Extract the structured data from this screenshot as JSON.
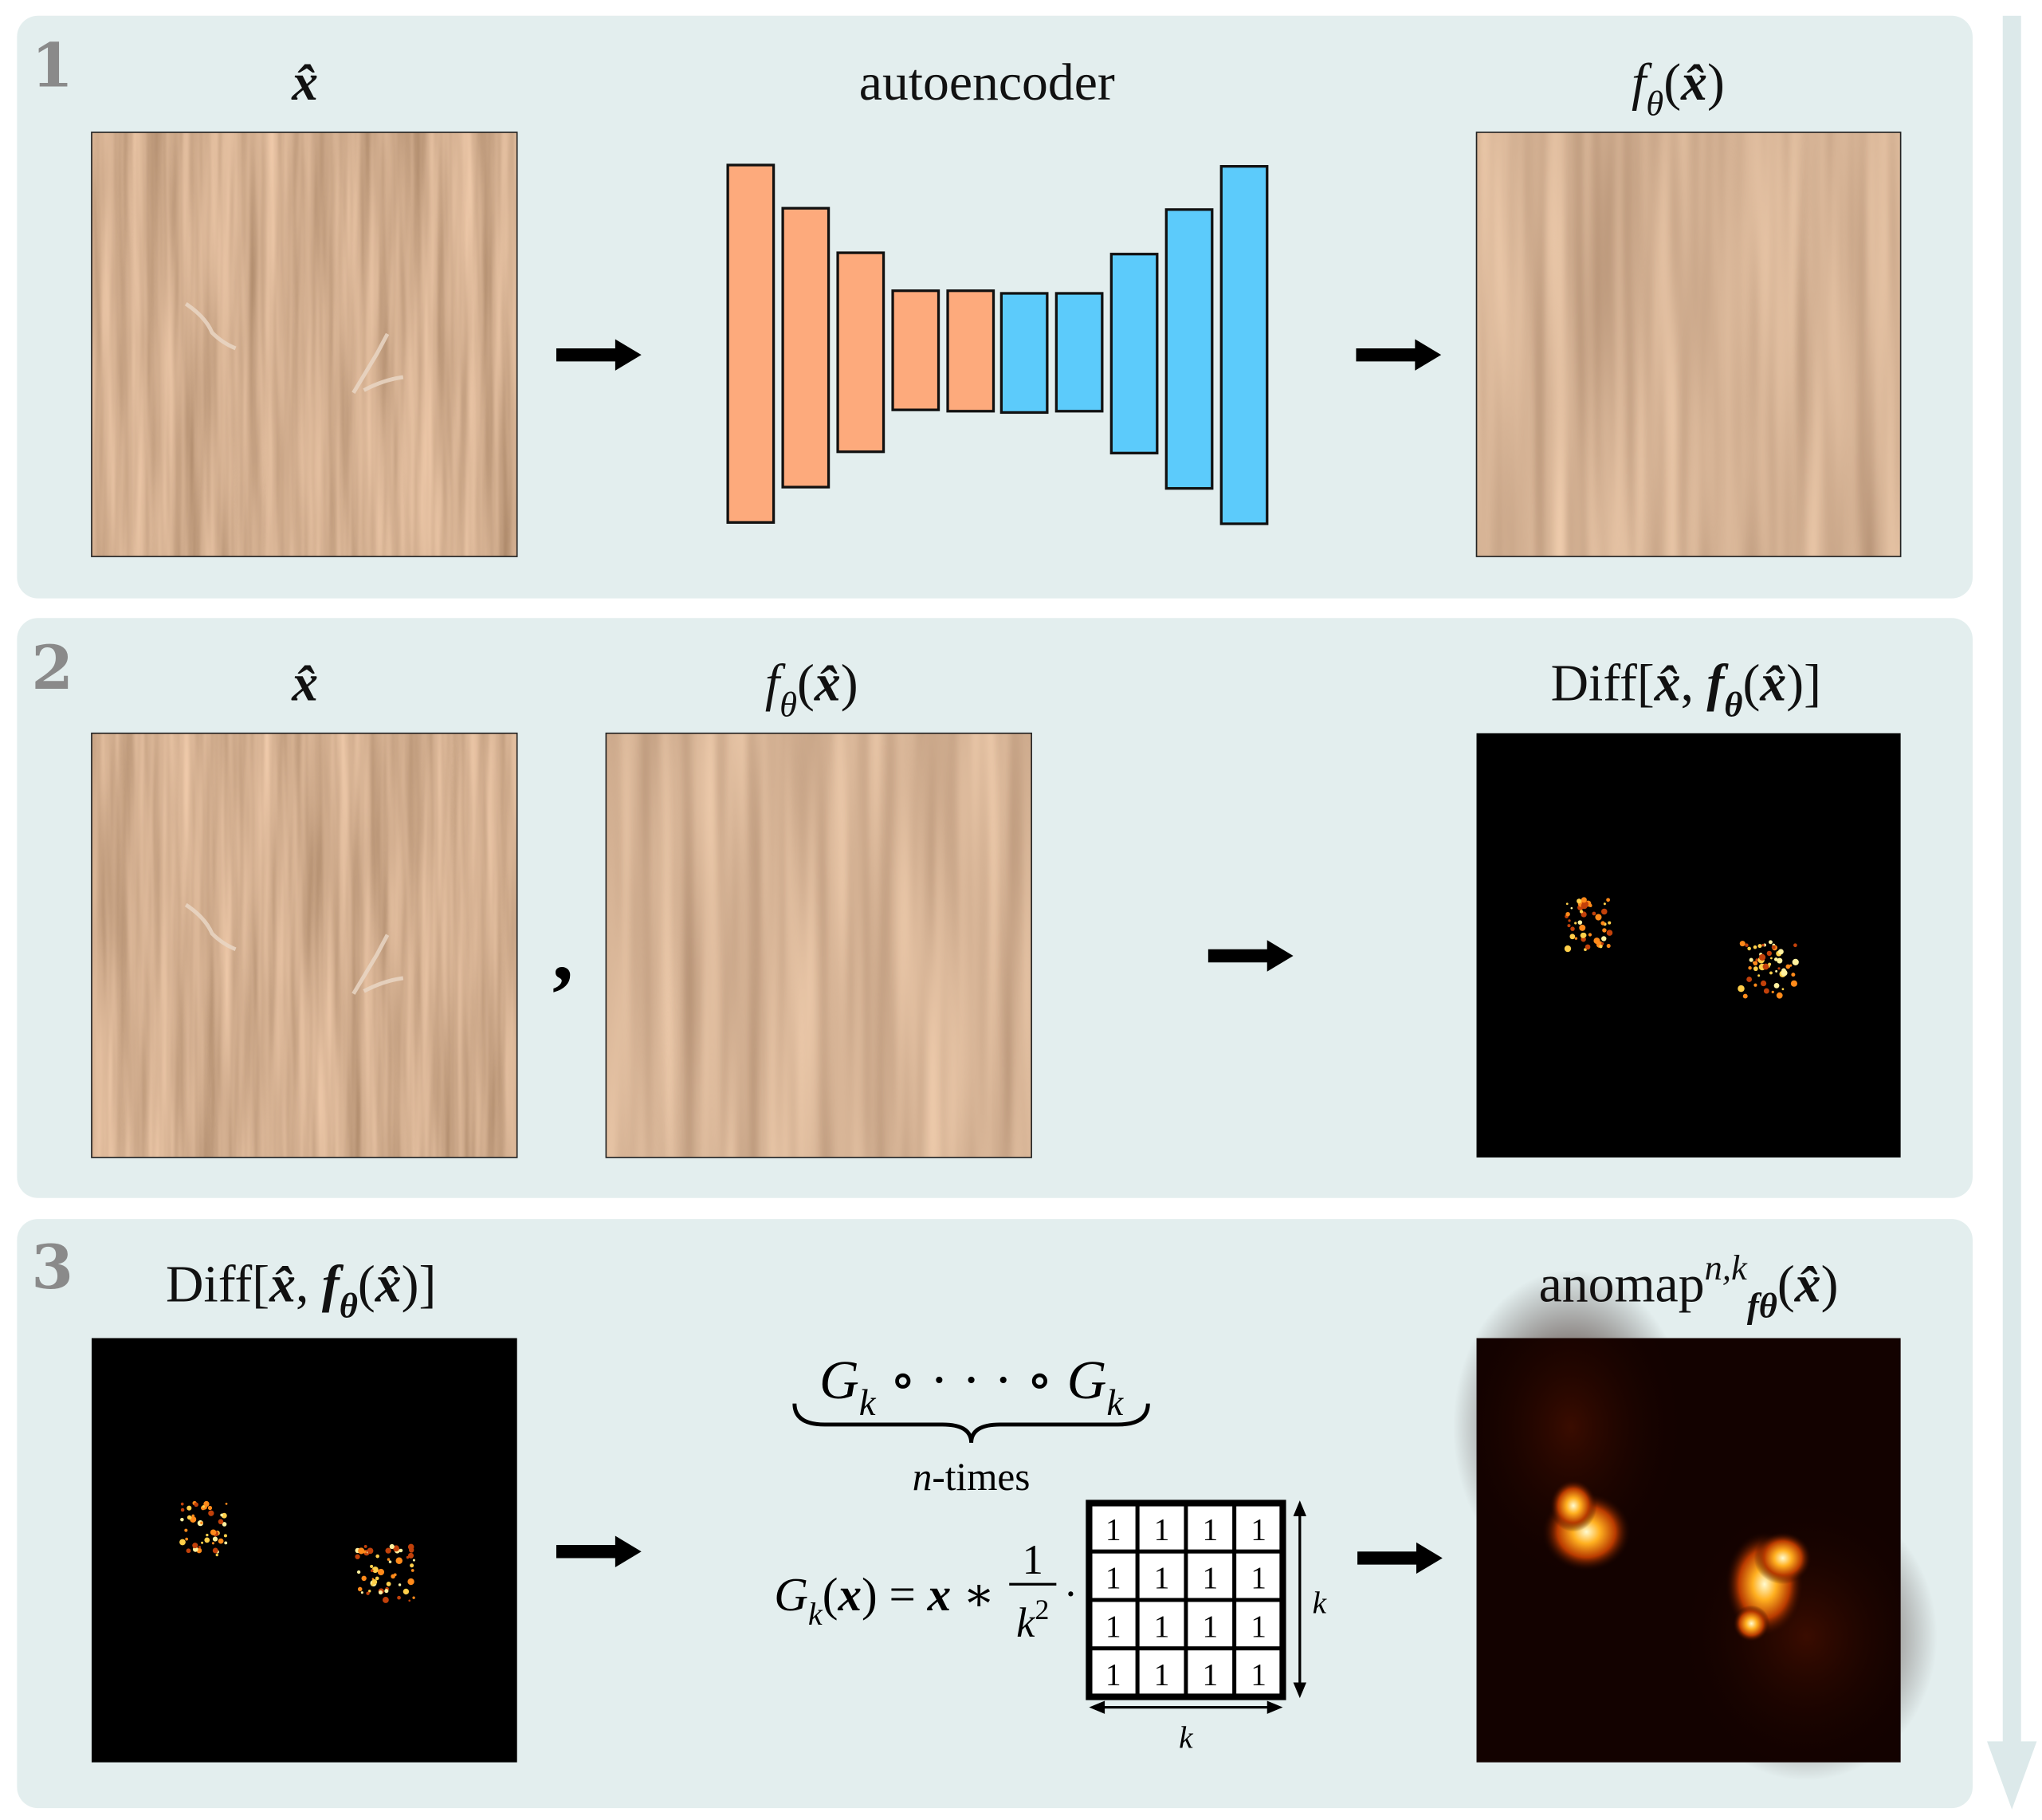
{
  "panels": [
    {
      "number": "1",
      "input_label": [
        {
          "text": "x̂",
          "style": "bold-italic"
        }
      ],
      "middle_label": [
        {
          "text": "autoencoder"
        }
      ],
      "output_label": [
        {
          "text": "f",
          "style": "italic"
        },
        {
          "text": "θ",
          "style": "italic",
          "script": "sub"
        },
        {
          "text": "("
        },
        {
          "text": "x̂",
          "style": "bold-italic"
        },
        {
          "text": ")"
        }
      ]
    },
    {
      "number": "2",
      "input_label": [
        {
          "text": "x̂",
          "style": "bold-italic"
        }
      ],
      "separator": ",",
      "second_label": [
        {
          "text": "f",
          "style": "italic"
        },
        {
          "text": "θ",
          "style": "italic",
          "script": "sub"
        },
        {
          "text": "("
        },
        {
          "text": "x̂",
          "style": "bold-italic"
        },
        {
          "text": ")"
        }
      ],
      "output_label": [
        {
          "text": "Diff["
        },
        {
          "text": "x̂",
          "style": "bold-italic"
        },
        {
          "text": ", "
        },
        {
          "text": "f",
          "style": "bold-italic"
        },
        {
          "text": "θ",
          "style": "bold-italic",
          "script": "sub"
        },
        {
          "text": "("
        },
        {
          "text": "x̂",
          "style": "bold-italic"
        },
        {
          "text": ")]"
        }
      ]
    },
    {
      "number": "3",
      "input_label": [
        {
          "text": "Diff["
        },
        {
          "text": "x̂",
          "style": "bold-italic"
        },
        {
          "text": ", "
        },
        {
          "text": "f",
          "style": "bold-italic"
        },
        {
          "text": "θ",
          "style": "bold-italic",
          "script": "sub"
        },
        {
          "text": "("
        },
        {
          "text": "x̂",
          "style": "bold-italic"
        },
        {
          "text": ")]"
        }
      ],
      "output_label": [
        {
          "text": "anomap"
        },
        {
          "text": "n,k",
          "style": "italic",
          "script": "sup"
        },
        {
          "text": "fθ",
          "style": "bold-italic",
          "script": "sub"
        },
        {
          "text": "("
        },
        {
          "text": "x̂",
          "style": "bold-italic"
        },
        {
          "text": ")"
        }
      ]
    }
  ],
  "formula": {
    "composition": [
      {
        "text": "G",
        "style": "italic"
      },
      {
        "text": "k",
        "style": "italic",
        "script": "sub"
      },
      {
        "text": " ∘ · · · ∘ "
      },
      {
        "text": "G",
        "style": "italic"
      },
      {
        "text": "k",
        "style": "italic",
        "script": "sub"
      }
    ],
    "brace_label": [
      {
        "text": "n",
        "style": "italic"
      },
      {
        "text": "-times"
      }
    ],
    "definition": [
      {
        "text": "G",
        "style": "italic"
      },
      {
        "text": "k",
        "style": "italic",
        "script": "sub"
      },
      {
        "text": "("
      },
      {
        "text": "x",
        "style": "bold-italic"
      },
      {
        "text": ") = "
      },
      {
        "text": "x",
        "style": "bold-italic"
      },
      {
        "text": " ∗"
      }
    ],
    "numerator": "1",
    "denominator": [
      {
        "text": "k",
        "style": "italic"
      },
      {
        "text": "2",
        "script": "sup"
      }
    ],
    "dot": "·",
    "kernel": [
      [
        1,
        1,
        1,
        1
      ],
      [
        1,
        1,
        1,
        1
      ],
      [
        1,
        1,
        1,
        1
      ],
      [
        1,
        1,
        1,
        1
      ]
    ],
    "kernel_height_label": "k",
    "kernel_width_label": "k"
  }
}
